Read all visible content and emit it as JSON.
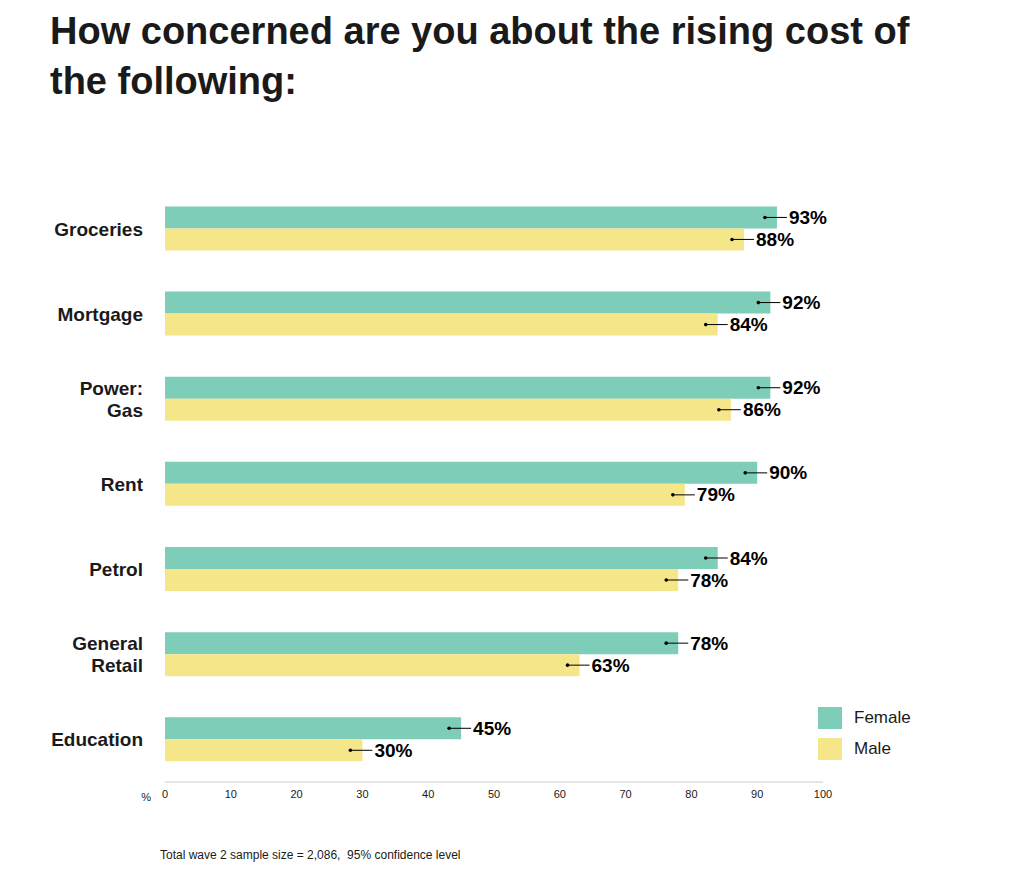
{
  "chart_data": {
    "type": "bar",
    "orientation": "horizontal",
    "title": "How concerned are you about the rising cost of the following:",
    "xlabel": "%",
    "categories": [
      "Groceries",
      "Mortgage",
      "Power: Gas",
      "Rent",
      "Petrol",
      "General Retail",
      "Education"
    ],
    "series": [
      {
        "name": "Female",
        "color": "#7ecdb8",
        "values": [
          93,
          92,
          92,
          90,
          84,
          78,
          45
        ],
        "value_labels": [
          "93%",
          "92%",
          "92%",
          "90%",
          "84%",
          "78%",
          "45%"
        ]
      },
      {
        "name": "Male",
        "color": "#f5e68a",
        "values": [
          88,
          84,
          86,
          79,
          78,
          63,
          30
        ],
        "value_labels": [
          "88%",
          "84%",
          "86%",
          "79%",
          "78%",
          "63%",
          "30%"
        ]
      }
    ],
    "xlim": [
      0,
      100
    ],
    "xticks": [
      0,
      10,
      20,
      30,
      40,
      50,
      60,
      70,
      80,
      90,
      100
    ],
    "data_labels": true,
    "legend": "lower right",
    "grid": false,
    "annotations": [
      "Total wave 2 sample size = 2,086,  95% confidence level"
    ]
  }
}
